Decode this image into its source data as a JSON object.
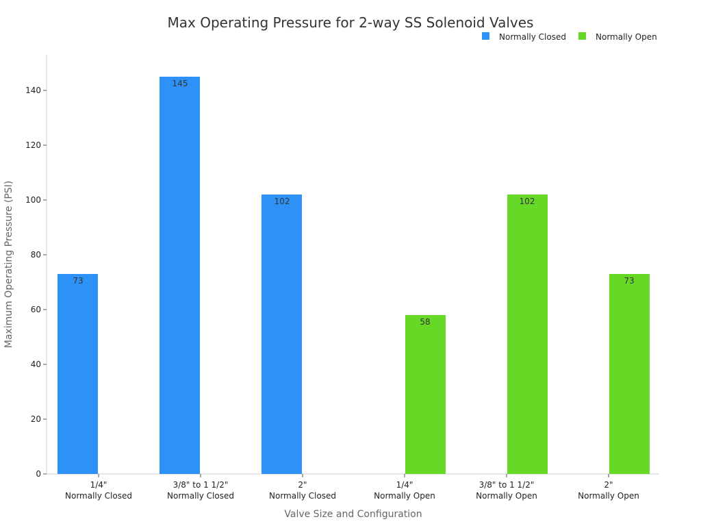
{
  "chart_data": {
    "type": "bar",
    "title": "Max Operating Pressure for 2-way SS Solenoid Valves",
    "xlabel": "Valve Size and Configuration",
    "ylabel": "Maximum Operating Pressure (PSI)",
    "ylim": [
      0,
      152
    ],
    "yticks": [
      0,
      20,
      40,
      60,
      80,
      100,
      120,
      140
    ],
    "grid": false,
    "legend_position": "top-right",
    "categories": [
      [
        "1/4\"",
        "Normally Closed"
      ],
      [
        "3/8\" to 1 1/2\"",
        "Normally Closed"
      ],
      [
        "2\"",
        "Normally Closed"
      ],
      [
        "1/4\"",
        "Normally Open"
      ],
      [
        "3/8\" to 1 1/2\"",
        "Normally Open"
      ],
      [
        "2\"",
        "Normally Open"
      ]
    ],
    "series": [
      {
        "name": "Normally Closed",
        "color": "#2d91f7",
        "values": [
          73,
          145,
          102,
          null,
          null,
          null
        ]
      },
      {
        "name": "Normally Open",
        "color": "#66d926",
        "values": [
          null,
          null,
          null,
          58,
          102,
          73
        ]
      }
    ]
  }
}
